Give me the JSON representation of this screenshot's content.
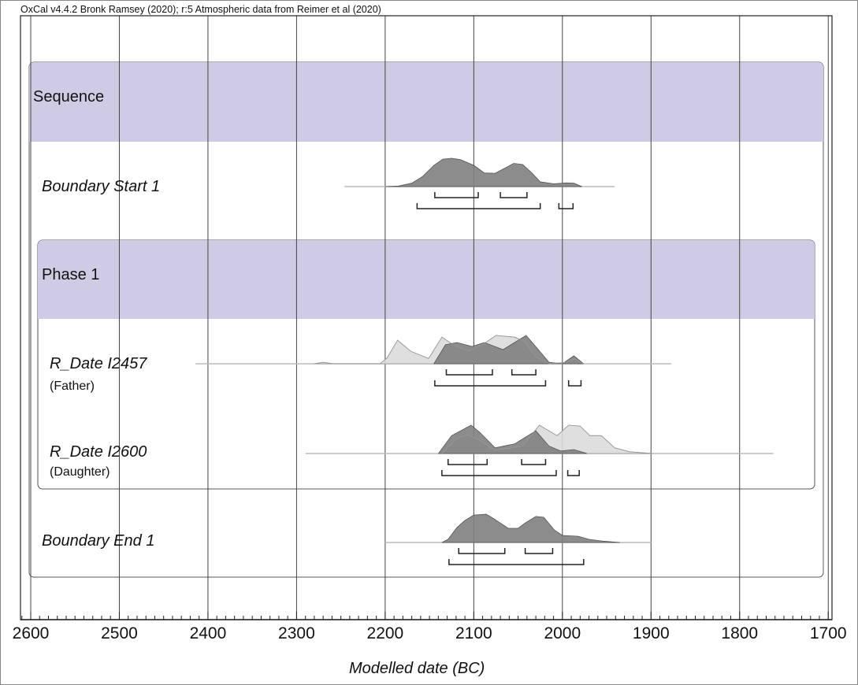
{
  "caption": "OxCal v4.4.2 Bronk Ramsey (2020); r:5 Atmospheric data from Reimer et al (2020)",
  "chart_data": {
    "type": "area",
    "title": "OxCal v4.4.2 Bronk Ramsey (2020); r:5 Atmospheric data from Reimer et al (2020)",
    "xlabel": "Modelled date (BC)",
    "xlim": [
      2600,
      1700
    ],
    "xticks": [
      2600,
      2500,
      2400,
      2300,
      2200,
      2100,
      2000,
      1900,
      1800,
      1700
    ],
    "minor_tick_step": 10,
    "grid": true,
    "colors": {
      "header": "#d0cbe5",
      "posterior": "#7f7f7f",
      "likelihood": "#dcdcdc",
      "bracket": "#222222"
    },
    "groups": [
      {
        "label": "Sequence",
        "type": "sequence"
      },
      {
        "label": "Phase 1",
        "type": "phase"
      }
    ],
    "rows": [
      {
        "label": "Boundary Start 1",
        "sublabel": null,
        "line_range": [
          2246,
          1941
        ],
        "likelihood": null,
        "posterior": [
          [
            2200,
            0
          ],
          [
            2185,
            0.02
          ],
          [
            2170,
            0.12
          ],
          [
            2158,
            0.35
          ],
          [
            2145,
            0.75
          ],
          [
            2135,
            0.97
          ],
          [
            2125,
            1
          ],
          [
            2115,
            0.95
          ],
          [
            2100,
            0.75
          ],
          [
            2088,
            0.48
          ],
          [
            2076,
            0.47
          ],
          [
            2065,
            0.65
          ],
          [
            2055,
            0.82
          ],
          [
            2045,
            0.78
          ],
          [
            2035,
            0.5
          ],
          [
            2025,
            0.17
          ],
          [
            2010,
            0.1
          ],
          [
            1995,
            0.13
          ],
          [
            1987,
            0.12
          ],
          [
            1978,
            0
          ]
        ],
        "range_68": [
          [
            2144,
            2095
          ],
          [
            2070,
            2040
          ]
        ],
        "range_95": [
          [
            2164,
            2025
          ],
          [
            2004,
            1988
          ]
        ]
      },
      {
        "label": "R_Date I2457",
        "sublabel": "(Father)",
        "line_range": [
          2414,
          1877
        ],
        "likelihood": [
          [
            2280,
            0
          ],
          [
            2270,
            0.05
          ],
          [
            2258,
            0
          ],
          [
            2206,
            0
          ],
          [
            2198,
            0.2
          ],
          [
            2186,
            0.83
          ],
          [
            2171,
            0.44
          ],
          [
            2151,
            0.19
          ],
          [
            2136,
            0.94
          ],
          [
            2123,
            0.67
          ],
          [
            2106,
            0.44
          ],
          [
            2088,
            0.72
          ],
          [
            2075,
            1
          ],
          [
            2054,
            0.94
          ],
          [
            2043,
            0.8
          ],
          [
            2030,
            0.25
          ],
          [
            2015,
            0
          ],
          [
            1995,
            0.05
          ],
          [
            1987,
            0.17
          ],
          [
            1976,
            0
          ]
        ],
        "posterior": [
          [
            2145,
            0
          ],
          [
            2132,
            0.67
          ],
          [
            2119,
            0.75
          ],
          [
            2102,
            0.61
          ],
          [
            2088,
            0.75
          ],
          [
            2067,
            0.5
          ],
          [
            2041,
            1
          ],
          [
            2028,
            0.53
          ],
          [
            2015,
            0.05
          ],
          [
            2000,
            0
          ],
          [
            1987,
            0.28
          ],
          [
            1976,
            0
          ]
        ],
        "range_68": [
          [
            2131,
            2079
          ],
          [
            2057,
            2030
          ]
        ],
        "range_95": [
          [
            2144,
            2019
          ],
          [
            1993,
            1979
          ]
        ]
      },
      {
        "label": "R_Date I2600",
        "sublabel": "(Daughter)",
        "line_range": [
          2290,
          1762
        ],
        "likelihood": [
          [
            2136,
            0
          ],
          [
            2119,
            0.54
          ],
          [
            2106,
            0.66
          ],
          [
            2093,
            0.46
          ],
          [
            2076,
            0.11
          ],
          [
            2045,
            0.26
          ],
          [
            2026,
            1
          ],
          [
            2006,
            0.63
          ],
          [
            1993,
            1
          ],
          [
            1980,
            0.97
          ],
          [
            1969,
            0.63
          ],
          [
            1956,
            0.63
          ],
          [
            1941,
            0.2
          ],
          [
            1924,
            0.06
          ],
          [
            1898,
            0
          ]
        ],
        "posterior": [
          [
            2140,
            0
          ],
          [
            2125,
            0.63
          ],
          [
            2103,
            1
          ],
          [
            2093,
            0.74
          ],
          [
            2076,
            0.2
          ],
          [
            2054,
            0.34
          ],
          [
            2030,
            0.8
          ],
          [
            2015,
            0.26
          ],
          [
            2002,
            0.09
          ],
          [
            1987,
            0.14
          ],
          [
            1972,
            0
          ]
        ],
        "range_68": [
          [
            2129,
            2085
          ],
          [
            2046,
            2019
          ]
        ],
        "range_95": [
          [
            2136,
            2007
          ],
          [
            1994,
            1981
          ]
        ]
      },
      {
        "label": "Boundary End 1",
        "sublabel": null,
        "line_range": [
          2200,
          1900
        ],
        "likelihood": null,
        "posterior": [
          [
            2136,
            0
          ],
          [
            2129,
            0.11
          ],
          [
            2119,
            0.53
          ],
          [
            2110,
            0.78
          ],
          [
            2100,
            0.97
          ],
          [
            2086,
            1
          ],
          [
            2077,
            0.83
          ],
          [
            2061,
            0.5
          ],
          [
            2050,
            0.5
          ],
          [
            2042,
            0.69
          ],
          [
            2030,
            0.92
          ],
          [
            2021,
            0.89
          ],
          [
            2009,
            0.44
          ],
          [
            2000,
            0.25
          ],
          [
            1982,
            0.22
          ],
          [
            1970,
            0.11
          ],
          [
            1955,
            0.05
          ],
          [
            1935,
            0
          ]
        ],
        "range_68": [
          [
            2117,
            2065
          ],
          [
            2042,
            2011
          ]
        ],
        "range_95": [
          [
            2128,
            1976
          ]
        ]
      }
    ]
  }
}
